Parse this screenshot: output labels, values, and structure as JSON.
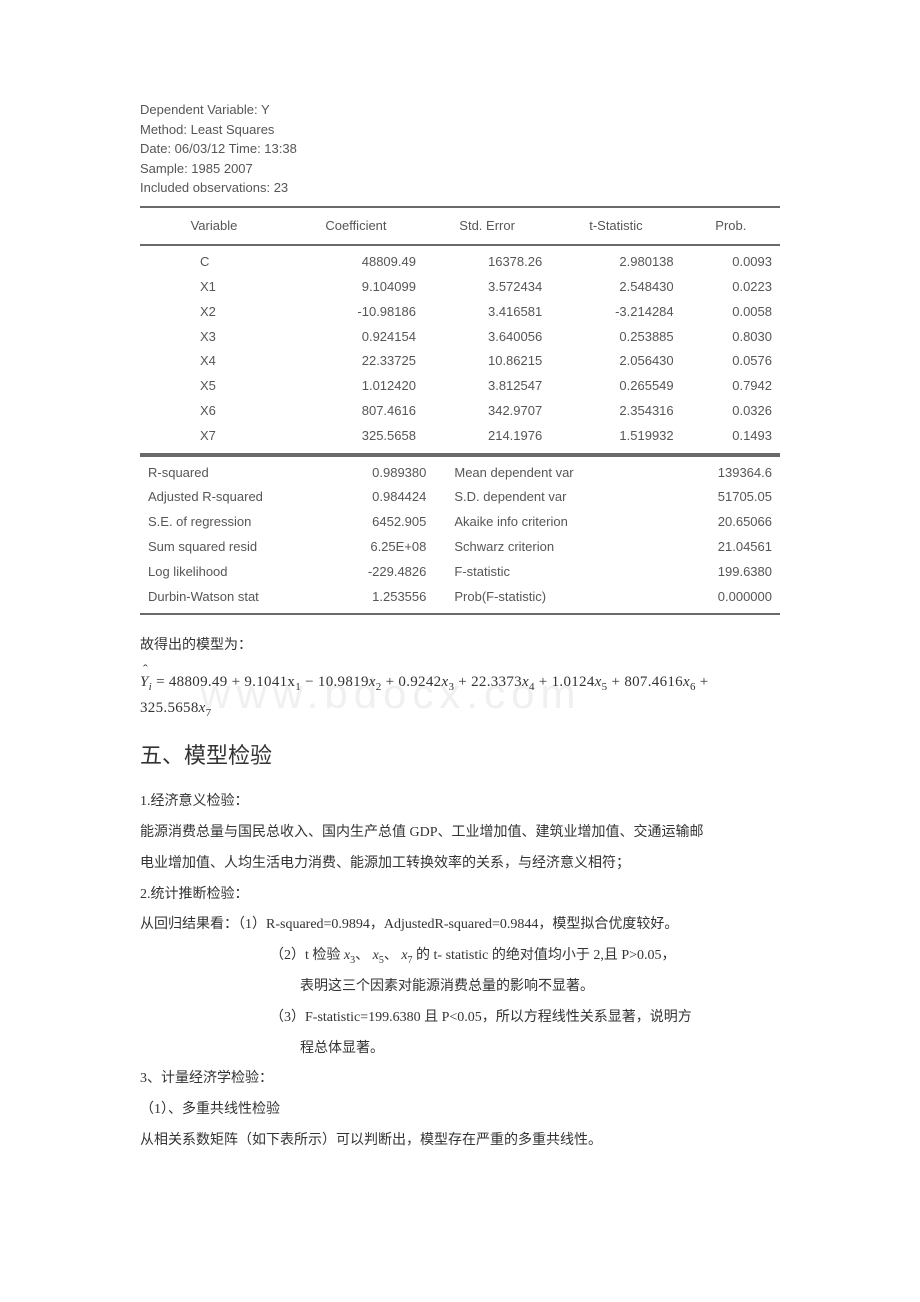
{
  "regression": {
    "header": {
      "dependent": "Dependent Variable: Y",
      "method": "Method: Least Squares",
      "date": "Date: 06/03/12   Time: 13:38",
      "sample": "Sample: 1985 2007",
      "included": "Included observations: 23"
    },
    "columns": [
      "Variable",
      "Coefficient",
      "Std. Error",
      "t-Statistic",
      "Prob."
    ],
    "rows": [
      [
        "C",
        "48809.49",
        "16378.26",
        "2.980138",
        "0.0093"
      ],
      [
        "X1",
        "9.104099",
        "3.572434",
        "2.548430",
        "0.0223"
      ],
      [
        "X2",
        "-10.98186",
        "3.416581",
        "-3.214284",
        "0.0058"
      ],
      [
        "X3",
        "0.924154",
        "3.640056",
        "0.253885",
        "0.8030"
      ],
      [
        "X4",
        "22.33725",
        "10.86215",
        "2.056430",
        "0.0576"
      ],
      [
        "X5",
        "1.012420",
        "3.812547",
        "0.265549",
        "0.7942"
      ],
      [
        "X6",
        "807.4616",
        "342.9707",
        "2.354316",
        "0.0326"
      ],
      [
        "X7",
        "325.5658",
        "214.1976",
        "1.519932",
        "0.1493"
      ]
    ],
    "stats": [
      [
        "R-squared",
        "0.989380",
        "Mean dependent var",
        "139364.6"
      ],
      [
        "Adjusted R-squared",
        "0.984424",
        "S.D. dependent var",
        "51705.05"
      ],
      [
        "S.E. of regression",
        "6452.905",
        "Akaike info criterion",
        "20.65066"
      ],
      [
        "Sum squared resid",
        "6.25E+08",
        "Schwarz criterion",
        "21.04561"
      ],
      [
        "Log likelihood",
        "-229.4826",
        "F-statistic",
        "199.6380"
      ],
      [
        "Durbin-Watson stat",
        "1.253556",
        "Prob(F-statistic)",
        "0.000000"
      ]
    ]
  },
  "model_intro": "故得出的模型为：",
  "equation": {
    "lhs": "Y",
    "lhs_sub": "i",
    "text": " = 48809.49 + 9.1041x",
    "terms": [
      {
        "coef": "",
        "var": "",
        "sub": "1"
      },
      {
        "coef": " − 10.9819",
        "var": "x",
        "sub": "2"
      },
      {
        "coef": " + 0.9242",
        "var": "x",
        "sub": "3"
      },
      {
        "coef": " + 22.3373",
        "var": "x",
        "sub": "4"
      },
      {
        "coef": " + 1.0124",
        "var": "x",
        "sub": "5"
      },
      {
        "coef": " + 807.4616",
        "var": "x",
        "sub": "6"
      },
      {
        "coef": " + 325.5658",
        "var": "x",
        "sub": "7"
      }
    ]
  },
  "watermark": "www.bdocx.com",
  "heading": "五、模型检验",
  "section1": {
    "title": "1.经济意义检验：",
    "p1": "能源消费总量与国民总收入、国内生产总值 GDP、工业增加值、建筑业增加值、交通运输邮",
    "p2": "电业增加值、人均生活电力消费、能源加工转换效率的关系，与经济意义相符；"
  },
  "section2": {
    "title": "2.统计推断检验：",
    "p1_a": "从回归结果看：（1）R-squared=0.9894，AdjustedR-squared=0.9844，模型拟合优度较好。",
    "p2_prefix": "（2）t 检验  ",
    "p2_v1": "x",
    "p2_s1": "3",
    "p2_sep": "、 ",
    "p2_v2": "x",
    "p2_s2": "5",
    "p2_v3": "x",
    "p2_s3": "7",
    "p2_suffix": " 的 t- statistic 的绝对值均小于 2,且 P>0.05，",
    "p3": "表明这三个因素对能源消费总量的影响不显著。",
    "p4": "（3）F-statistic=199.6380 且 P<0.05，所以方程线性关系显著，说明方",
    "p5": "程总体显著。"
  },
  "section3": {
    "title": "3、计量经济学检验：",
    "sub": "（1）、多重共线性检验",
    "p1": "从相关系数矩阵（如下表所示）可以判断出，模型存在严重的多重共线性。"
  }
}
